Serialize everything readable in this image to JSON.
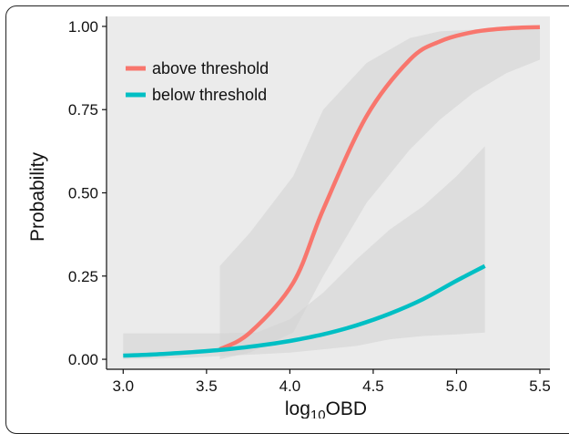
{
  "chart_data": {
    "type": "line",
    "xlabel_main": "log",
    "xlabel_sub": "10",
    "xlabel_tail": "OBD",
    "ylabel": "Probability",
    "xlim": [
      2.9,
      5.56
    ],
    "ylim": [
      -0.03,
      1.03
    ],
    "x_ticks": [
      {
        "value": 3.0,
        "label": "3.0"
      },
      {
        "value": 3.5,
        "label": "3.5"
      },
      {
        "value": 4.0,
        "label": "4.0"
      },
      {
        "value": 4.5,
        "label": "4.5"
      },
      {
        "value": 5.0,
        "label": "5.0"
      },
      {
        "value": 5.5,
        "label": "5.5"
      }
    ],
    "y_ticks": [
      {
        "value": 0.0,
        "label": "0.00"
      },
      {
        "value": 0.25,
        "label": "0.25"
      },
      {
        "value": 0.5,
        "label": "0.50"
      },
      {
        "value": 0.75,
        "label": "0.75"
      },
      {
        "value": 1.0,
        "label": "1.00"
      }
    ],
    "grid": false,
    "legend_position": "top-left",
    "series": [
      {
        "name": "above threshold",
        "color": "#F8766D",
        "x": [
          3.58,
          3.76,
          4.02,
          4.2,
          4.46,
          4.72,
          4.9,
          5.1,
          5.3,
          5.5
        ],
        "y": [
          0.03,
          0.08,
          0.23,
          0.45,
          0.73,
          0.9,
          0.955,
          0.983,
          0.994,
          0.998
        ],
        "ci_lower": [
          0.0,
          0.02,
          0.08,
          0.25,
          0.47,
          0.63,
          0.72,
          0.8,
          0.86,
          0.9
        ],
        "ci_upper": [
          0.28,
          0.38,
          0.55,
          0.75,
          0.89,
          0.965,
          0.985,
          0.99,
          0.995,
          0.998
        ]
      },
      {
        "name": "below threshold",
        "color": "#00BFC4",
        "x": [
          3.0,
          3.2,
          3.4,
          3.6,
          3.8,
          4.0,
          4.2,
          4.4,
          4.6,
          4.8,
          5.0,
          5.17
        ],
        "y": [
          0.011,
          0.015,
          0.021,
          0.029,
          0.04,
          0.055,
          0.075,
          0.102,
          0.137,
          0.181,
          0.236,
          0.28
        ],
        "ci_lower": [
          0.0,
          0.002,
          0.005,
          0.01,
          0.015,
          0.02,
          0.03,
          0.04,
          0.06,
          0.07,
          0.075,
          0.08
        ],
        "ci_upper": [
          0.078,
          0.078,
          0.078,
          0.078,
          0.08,
          0.12,
          0.2,
          0.3,
          0.39,
          0.46,
          0.55,
          0.64
        ]
      }
    ],
    "band_color": "#d4d4d4",
    "background_color": "#ebebeb"
  }
}
